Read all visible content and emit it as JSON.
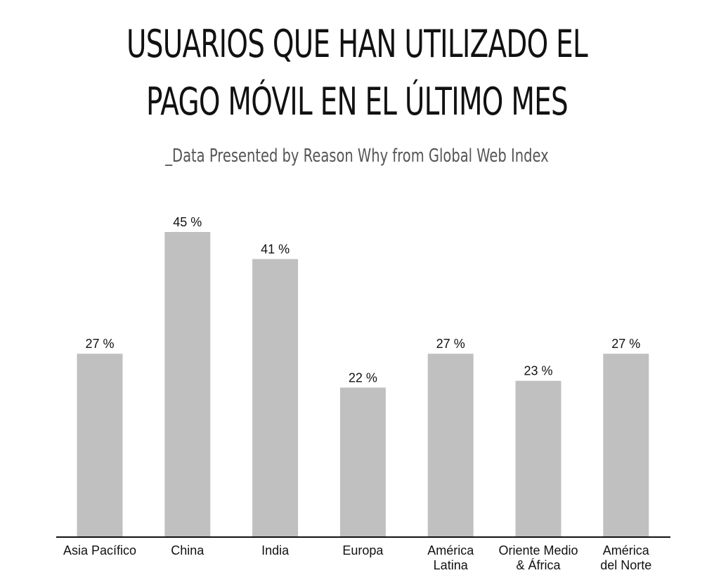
{
  "chart_data": {
    "type": "bar",
    "title": "USUARIOS QUE HAN UTILIZADO EL PAGO MÓVIL EN EL ÚLTIMO MES",
    "subtitle": "_Data Presented by Reason Why from Global Web Index",
    "categories": [
      [
        "Asia Pacífico"
      ],
      [
        "China"
      ],
      [
        "India"
      ],
      [
        "Europa"
      ],
      [
        "América",
        "Latina"
      ],
      [
        "Oriente Medio",
        "& África"
      ],
      [
        "América",
        "del Norte"
      ]
    ],
    "values": [
      27,
      45,
      41,
      22,
      27,
      23,
      27
    ],
    "value_labels": [
      "27 %",
      "45 %",
      "41 %",
      "22 %",
      "27 %",
      "23 %",
      "27 %"
    ],
    "bar_color": "#c0c0c0",
    "ylim": [
      0,
      45
    ],
    "grid": false,
    "legend": "none"
  }
}
